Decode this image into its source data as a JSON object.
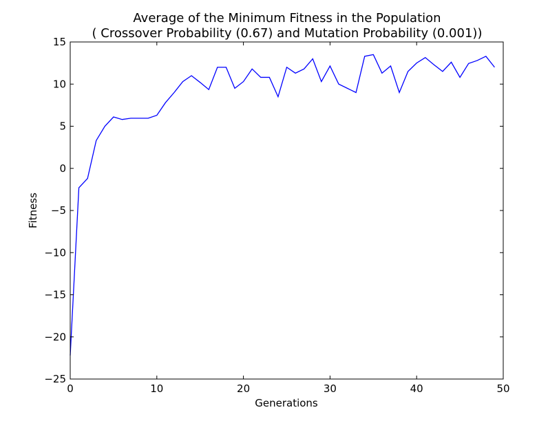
{
  "chart_data": {
    "type": "line",
    "title": "Average of the Minimum Fitness in the Population",
    "subtitle": "( Crossover Probability (0.67) and Mutation Probability (0.001))",
    "xlabel": "Generations",
    "ylabel": "Fitness",
    "xlim": [
      0,
      50
    ],
    "ylim": [
      -25,
      15
    ],
    "xticks": [
      0,
      10,
      20,
      30,
      40,
      50
    ],
    "yticks": [
      -25,
      -20,
      -15,
      -10,
      -5,
      0,
      5,
      10,
      15
    ],
    "grid": false,
    "line_color": "#0000ff",
    "series": [
      {
        "x": [
          0,
          1,
          2,
          3,
          4,
          5,
          6,
          7,
          8,
          9,
          10,
          11,
          12,
          13,
          14,
          15,
          16,
          17,
          18,
          19,
          20,
          21,
          22,
          23,
          24,
          25,
          26,
          27,
          28,
          29,
          30,
          31,
          32,
          33,
          34,
          35,
          36,
          37,
          38,
          39,
          40,
          41,
          42,
          43,
          44,
          45,
          46,
          47,
          48,
          49
        ],
        "y": [
          -22.2,
          -2.3,
          -1.2,
          3.3,
          5.0,
          6.1,
          5.8,
          5.95,
          5.95,
          5.95,
          6.3,
          7.8,
          9.0,
          10.3,
          11.0,
          10.2,
          9.35,
          12.0,
          12.0,
          9.5,
          10.3,
          11.8,
          10.8,
          10.8,
          8.5,
          12.0,
          11.3,
          11.8,
          13.0,
          10.3,
          12.15,
          10.0,
          9.5,
          9.0,
          13.3,
          13.5,
          11.3,
          12.15,
          9.0,
          11.5,
          12.5,
          13.15,
          12.3,
          11.5,
          12.6,
          10.8,
          12.45,
          12.8,
          13.3,
          12.0
        ]
      }
    ]
  }
}
